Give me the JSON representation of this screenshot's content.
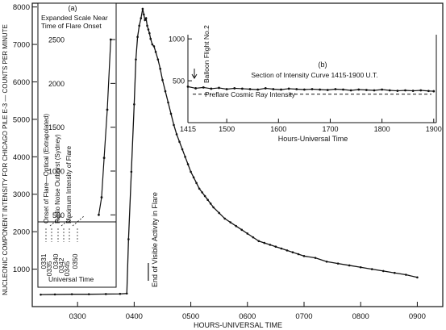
{
  "chart_data": [
    {
      "id": "main",
      "type": "line",
      "xlabel": "HOURS-UNIVERSAL TIME",
      "ylabel": "NUCLEONIC COMPONENT INTENSITY FOR CHICAGO PILE E-3 — COUNTS PER MINUTE",
      "xlim": [
        2.2,
        9.45
      ],
      "ylim": [
        0,
        8100
      ],
      "xticks": [
        {
          "v": 3,
          "label": "0300"
        },
        {
          "v": 4,
          "label": "0400"
        },
        {
          "v": 5,
          "label": "0500"
        },
        {
          "v": 6,
          "label": "0600"
        },
        {
          "v": 7,
          "label": "0700"
        },
        {
          "v": 8,
          "label": "0800"
        },
        {
          "v": 9,
          "label": "0900"
        }
      ],
      "yticks": [
        {
          "v": 1000,
          "label": "1000"
        },
        {
          "v": 2000,
          "label": "2000"
        },
        {
          "v": 3000,
          "label": "3000"
        },
        {
          "v": 4000,
          "label": "4000"
        },
        {
          "v": 5000,
          "label": "5000"
        },
        {
          "v": 6000,
          "label": "6000"
        },
        {
          "v": 7000,
          "label": "7000"
        },
        {
          "v": 8000,
          "label": "8000"
        }
      ],
      "annotation": {
        "text": "End of Visible Activity in Flare",
        "x": 4.25
      },
      "series": [
        {
          "x": [
            2.35,
            2.6,
            2.9,
            3.2,
            3.5,
            3.75,
            3.87,
            3.9,
            3.95,
            4.0,
            4.03,
            4.06,
            4.09,
            4.12,
            4.15,
            4.17,
            4.19,
            4.21,
            4.23,
            4.25,
            4.27,
            4.29,
            4.32,
            4.35,
            4.38,
            4.42,
            4.46,
            4.5,
            4.55,
            4.6,
            4.65,
            4.7,
            4.75,
            4.8,
            4.85,
            4.9,
            4.95,
            5.0,
            5.05,
            5.1,
            5.15,
            5.2,
            5.25,
            5.3,
            5.35,
            5.4,
            5.5,
            5.6,
            5.7,
            5.8,
            5.9,
            6.0,
            6.1,
            6.2,
            6.3,
            6.4,
            6.5,
            6.6,
            6.7,
            6.8,
            6.9,
            7.0,
            7.2,
            7.4,
            7.6,
            7.8,
            8.0,
            8.2,
            8.4,
            8.6,
            8.8,
            9.0
          ],
          "y": [
            320,
            325,
            330,
            330,
            335,
            340,
            350,
            1800,
            3600,
            5400,
            6600,
            7200,
            7500,
            7700,
            7950,
            7800,
            7650,
            7700,
            7500,
            7400,
            7300,
            7150,
            7000,
            6950,
            6800,
            6600,
            6350,
            6050,
            5750,
            5450,
            5150,
            4850,
            4600,
            4400,
            4200,
            4000,
            3800,
            3600,
            3450,
            3300,
            3150,
            3050,
            2950,
            2850,
            2750,
            2650,
            2500,
            2350,
            2250,
            2150,
            2050,
            1950,
            1850,
            1750,
            1700,
            1650,
            1600,
            1550,
            1500,
            1450,
            1400,
            1350,
            1300,
            1200,
            1150,
            1100,
            1050,
            1000,
            950,
            900,
            850,
            780
          ]
        }
      ]
    },
    {
      "id": "inset-a",
      "type": "line",
      "label": "(a)",
      "title": "Expanded Scale Near Time of Flare Onset",
      "xlabel": "Universal Time",
      "yticks": [
        {
          "v": 500,
          "label": "500"
        },
        {
          "v": 1000,
          "label": "1000"
        },
        {
          "v": 1500,
          "label": "1500"
        },
        {
          "v": 2000,
          "label": "2000"
        },
        {
          "v": 2500,
          "label": "2500"
        }
      ],
      "ylim": [
        420,
        2620
      ],
      "xlim": [
        331,
        353
      ],
      "xticks": [
        {
          "v": 331,
          "label": "0331"
        },
        {
          "v": 335,
          "label": "0335"
        },
        {
          "v": 340,
          "label": "0340"
        },
        {
          "v": 342,
          "label": "0342"
        },
        {
          "v": 345,
          "label": "0345"
        },
        {
          "v": 350,
          "label": "0350"
        }
      ],
      "markers": [
        {
          "x": 331,
          "label": "Onset of Flare—Optical (Extrapolated)"
        },
        {
          "x": 335,
          "label": "Radio Noise Outburst (Sydney)"
        },
        {
          "x": 342,
          "label": "Maximum Intensity of Flare"
        }
      ],
      "series": [
        {
          "x": [
            348.0,
            348.9,
            349.7,
            350.7,
            351.8
          ],
          "y": [
            500,
            700,
            1150,
            1700,
            2500
          ]
        }
      ]
    },
    {
      "id": "inset-b",
      "type": "line",
      "label": "(b)",
      "title": "Section of Intensity Curve 1415-1900 U.T.",
      "xlabel": "Hours-Universal Time",
      "xlim": [
        14.25,
        19.05
      ],
      "ylim": [
        0,
        1050
      ],
      "xticks": [
        {
          "v": 14.25,
          "label": "1415"
        },
        {
          "v": 15,
          "label": "1500"
        },
        {
          "v": 16,
          "label": "1600"
        },
        {
          "v": 17,
          "label": "1700"
        },
        {
          "v": 18,
          "label": "1800"
        },
        {
          "v": 19,
          "label": "1900"
        }
      ],
      "yticks": [
        {
          "v": 500,
          "label": "500"
        },
        {
          "v": 1000,
          "label": "1000"
        }
      ],
      "balloon_label": "Balloon Flight No.2",
      "baseline": {
        "label": "Preflare Cosmic Ray Intensity",
        "y": 340
      },
      "series": [
        {
          "x": [
            14.25,
            14.4,
            14.55,
            14.7,
            14.85,
            15.0,
            15.15,
            15.3,
            15.45,
            15.6,
            15.75,
            15.9,
            16.05,
            16.2,
            16.35,
            16.5,
            16.65,
            16.8,
            16.95,
            17.1,
            17.25,
            17.4,
            17.55,
            17.7,
            17.85,
            18.0,
            18.15,
            18.3,
            18.45,
            18.6,
            18.75,
            18.9,
            19.0
          ],
          "y": [
            430,
            410,
            420,
            405,
            415,
            400,
            410,
            405,
            400,
            395,
            410,
            400,
            395,
            405,
            400,
            395,
            400,
            395,
            390,
            400,
            395,
            385,
            395,
            390,
            385,
            395,
            385,
            380,
            385,
            380,
            385,
            378,
            375
          ]
        }
      ]
    }
  ]
}
